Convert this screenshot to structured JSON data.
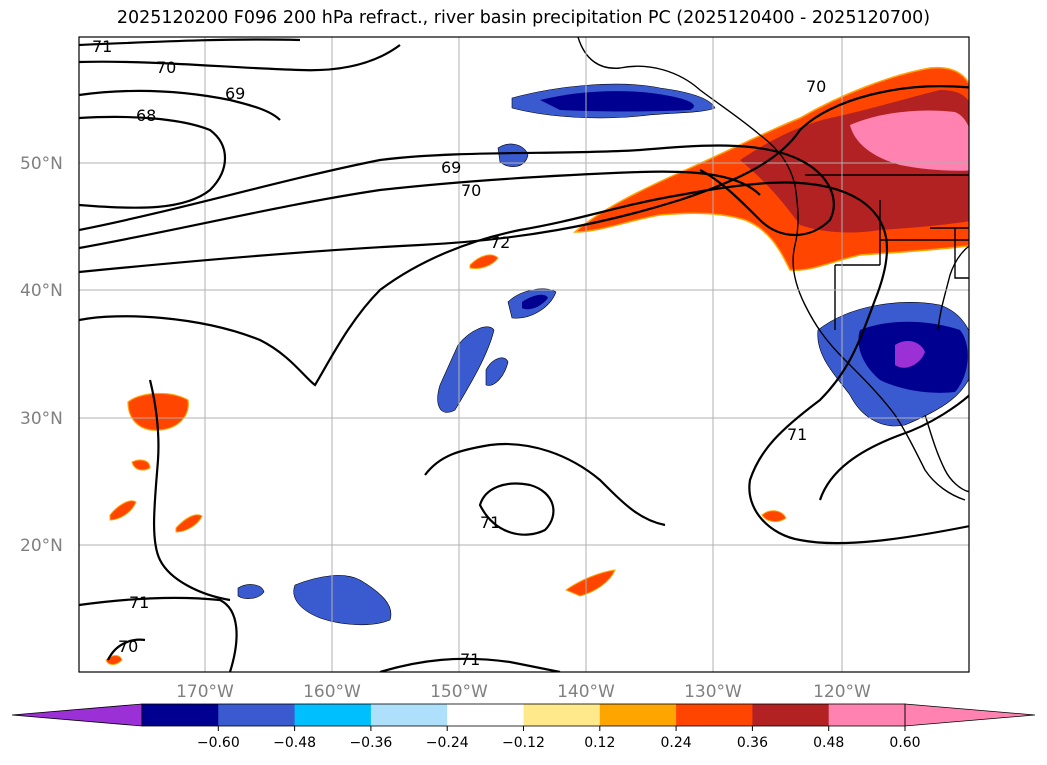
{
  "title": "2025120200 F096 200 hPa refract., river basin precipitation PC (2025120400 - 2025120700)",
  "map": {
    "lat_labels": [
      "50°N",
      "40°N",
      "30°N",
      "20°N"
    ],
    "lon_labels": [
      "170°W",
      "160°W",
      "150°W",
      "140°W",
      "130°W",
      "120°W"
    ],
    "contour_labels": [
      "71",
      "70",
      "69",
      "68",
      "69",
      "70",
      "72",
      "70",
      "71",
      "71",
      "71",
      "70",
      "71"
    ]
  },
  "colorbar": {
    "ticks": [
      "−0.60",
      "−0.48",
      "−0.36",
      "−0.24",
      "−0.12",
      "0.12",
      "0.24",
      "0.36",
      "0.48",
      "0.60"
    ],
    "colors": [
      "#9b30d6",
      "#000090",
      "#3a5bd0",
      "#00bfff",
      "#aee0fb",
      "#ffffff",
      "#ffe98a",
      "#ffa500",
      "#ff4500",
      "#b22222",
      "#ff82b0",
      "#ff82b0"
    ]
  }
}
